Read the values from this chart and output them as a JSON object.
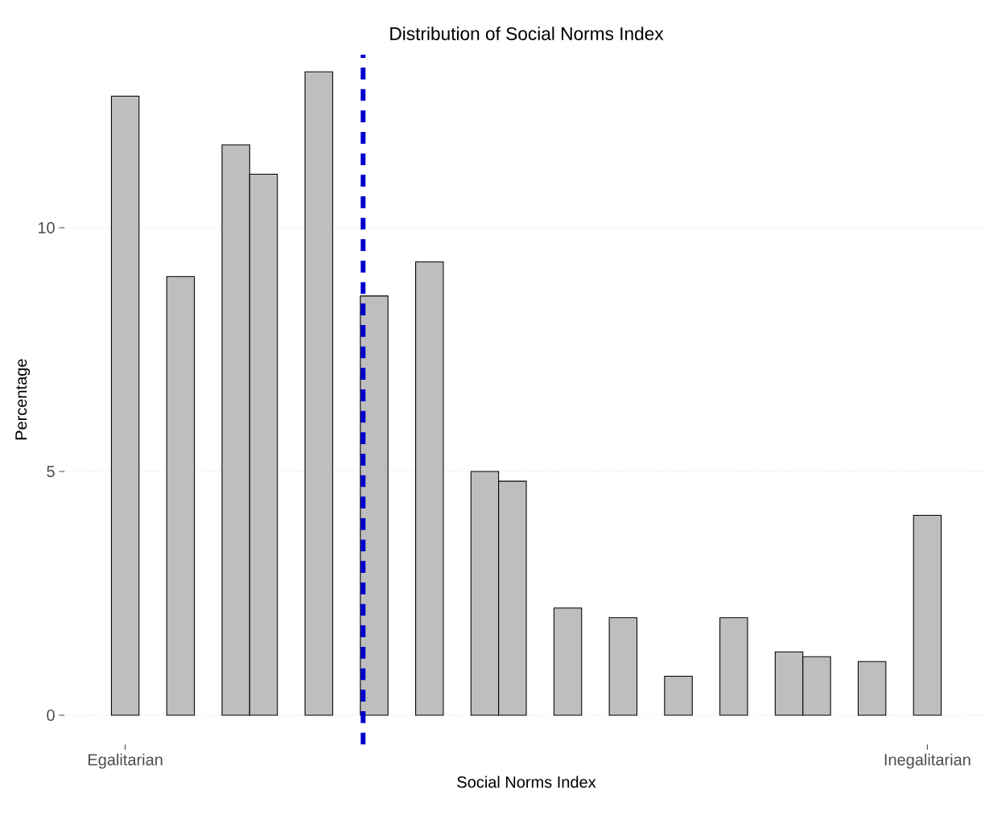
{
  "chart_data": {
    "type": "bar",
    "title": "Distribution of Social Norms Index",
    "xlabel": "Social Norms Index",
    "ylabel": "Percentage",
    "categories": [
      "Egalitarian",
      null,
      null,
      null,
      null,
      null,
      null,
      null,
      null,
      null,
      null,
      null,
      null,
      null,
      null,
      null,
      null,
      null,
      null,
      null,
      null,
      null,
      null,
      null,
      null,
      null,
      null,
      null,
      null,
      "Inegalitarian"
    ],
    "values": [
      12.7,
      null,
      9.0,
      null,
      11.7,
      11.1,
      null,
      13.2,
      null,
      8.6,
      null,
      9.3,
      null,
      5.0,
      4.8,
      null,
      2.2,
      null,
      2.0,
      null,
      0.8,
      null,
      2.0,
      null,
      1.3,
      1.2,
      null,
      1.1,
      null,
      4.1
    ],
    "color": "#bebebe",
    "ylim": [
      -0.6,
      13.55
    ],
    "yticks": [
      0,
      5,
      10
    ],
    "grid": "y"
  }
}
